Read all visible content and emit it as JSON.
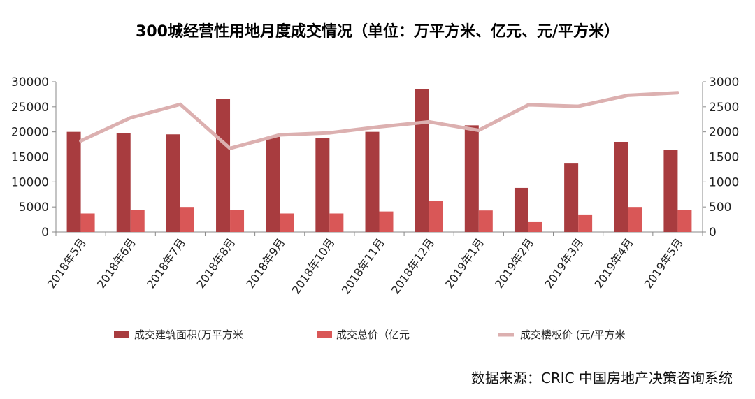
{
  "chart_data": {
    "type": "bar",
    "title": "300城经营性用地月度成交情况（单位：万平方米、亿元、元/平方米）",
    "categories": [
      "2018年5月",
      "2018年6月",
      "2018年7月",
      "2018年8月",
      "2018年9月",
      "2018年10月",
      "2018年11月",
      "2018年12月",
      "2019年1月",
      "2019年2月",
      "2019年3月",
      "2019年4月",
      "2019年5月"
    ],
    "y_left": {
      "min": 0,
      "max": 30000,
      "ticks": [
        "0",
        "5000",
        "10000",
        "15000",
        "20000",
        "25000",
        "30000"
      ]
    },
    "y_right": {
      "min": 0,
      "max": 3000,
      "ticks": [
        "0",
        "500",
        "1000",
        "1500",
        "2000",
        "2500",
        "3000"
      ]
    },
    "series": [
      {
        "name": "成交建筑面积(万平方米",
        "type": "bar",
        "axis": "left",
        "color": "#a83c3f",
        "values": [
          20000,
          19700,
          19500,
          26600,
          19000,
          18700,
          20000,
          28500,
          21300,
          8800,
          13800,
          18000,
          16400
        ]
      },
      {
        "name": "成交总价（亿元",
        "type": "bar",
        "axis": "left",
        "color": "#d95757",
        "values": [
          3700,
          4400,
          5000,
          4400,
          3700,
          3700,
          4100,
          6200,
          4300,
          2100,
          3500,
          5000,
          4400
        ]
      },
      {
        "name": "成交楼板价 (元/平方米",
        "type": "line",
        "axis": "right",
        "color": "#dcb0b0",
        "values": [
          1820,
          2280,
          2550,
          1670,
          1940,
          1980,
          2100,
          2200,
          2030,
          2540,
          2510,
          2730,
          2780
        ]
      }
    ],
    "source": "数据来源：CRIC 中国房地产决策咨询系统"
  }
}
